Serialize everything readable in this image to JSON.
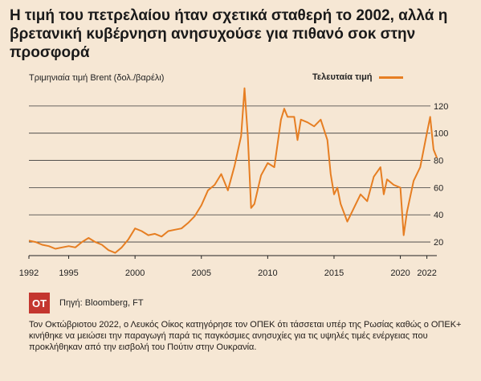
{
  "header": {
    "title": "Η τιμή του πετρελαίου ήταν σχετικά σταθερή το 2002, αλλά η βρετανική κυβέρνηση ανησυχούσε για πιθανό σοκ στην προσφορά"
  },
  "footer": {
    "logo": "OT",
    "source": "Πηγή: Bloomberg, FT",
    "caption": "Τον Οκτώβριοτου 2022, ο Λευκός Οίκος κατηγόρησε τον ΟΠΕΚ ότι τάσσεται υπέρ της Ρωσίας καθώς ο ΟΠΕΚ+ κινήθηκε να μειώσει την παραγωγή παρά τις παγκόσμιες ανησυχίες για τις υψηλές τιμές ενέργειας που προκλήθηκαν από την εισβολή του Πούτιν στην Ουκρανία."
  },
  "colors": {
    "line": "#e67e22",
    "background": "#f6e7d4",
    "grid": "#3a3a3a",
    "logo": "#c4362f"
  },
  "chart_data": {
    "type": "line",
    "title": "",
    "xlabel": "",
    "ylabel": "Τριμηνιαία τιμή Brent (δολ./βαρέλι)",
    "legend_position": "top-right",
    "grid": true,
    "xlim": [
      1992,
      2022.75
    ],
    "ylim": [
      10,
      140
    ],
    "x_ticks": [
      1992,
      1995,
      2000,
      2005,
      2010,
      2015,
      2020,
      2022
    ],
    "y_ticks": [
      20,
      40,
      60,
      80,
      100,
      120
    ],
    "series": [
      {
        "name": "Τελευταία τιμή",
        "x": [
          1992,
          1992.5,
          1993,
          1993.5,
          1994,
          1994.5,
          1995,
          1995.5,
          1996,
          1996.5,
          1997,
          1997.5,
          1998,
          1998.5,
          1999,
          1999.5,
          2000,
          2000.5,
          2001,
          2001.5,
          2002,
          2002.5,
          2003,
          2003.5,
          2004,
          2004.5,
          2005,
          2005.5,
          2006,
          2006.5,
          2007,
          2007.5,
          2008,
          2008.25,
          2008.5,
          2008.75,
          2009,
          2009.5,
          2010,
          2010.5,
          2011,
          2011.25,
          2011.5,
          2012,
          2012.25,
          2012.5,
          2013,
          2013.5,
          2014,
          2014.5,
          2014.75,
          2015,
          2015.25,
          2015.5,
          2016,
          2016.5,
          2017,
          2017.5,
          2018,
          2018.5,
          2018.75,
          2019,
          2019.5,
          2020,
          2020.25,
          2020.5,
          2021,
          2021.5,
          2022,
          2022.25,
          2022.5,
          2022.75
        ],
        "y": [
          21,
          20,
          18,
          17,
          15,
          16,
          17,
          16,
          20,
          23,
          20,
          18,
          14,
          12,
          16,
          22,
          30,
          28,
          25,
          26,
          24,
          28,
          29,
          30,
          34,
          39,
          47,
          58,
          62,
          70,
          58,
          76,
          98,
          133,
          98,
          45,
          48,
          69,
          78,
          75,
          110,
          118,
          112,
          112,
          95,
          110,
          108,
          105,
          110,
          95,
          70,
          55,
          60,
          48,
          35,
          45,
          55,
          50,
          68,
          75,
          55,
          66,
          62,
          60,
          25,
          42,
          65,
          75,
          100,
          112,
          88,
          82
        ]
      }
    ]
  }
}
